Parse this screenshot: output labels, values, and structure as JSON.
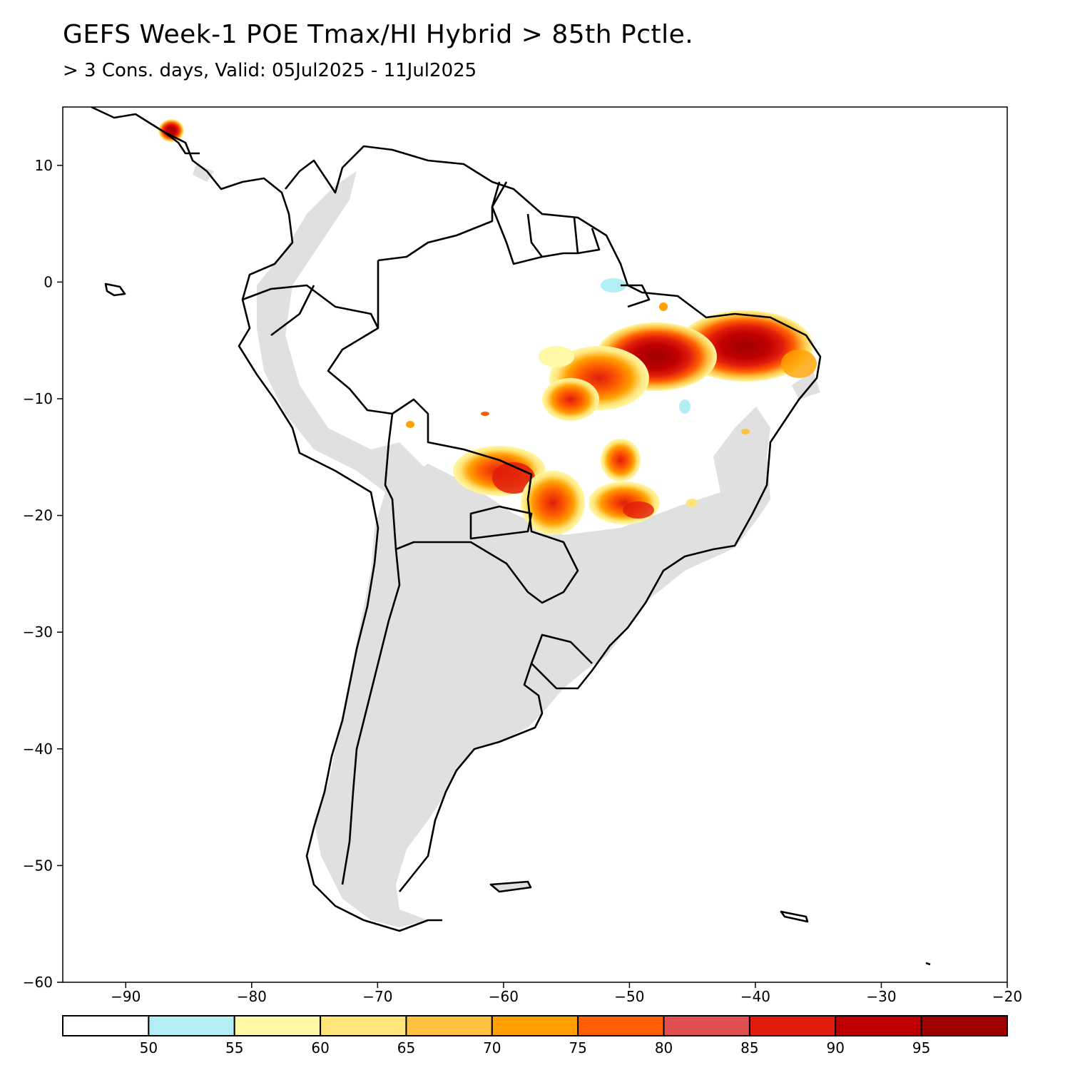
{
  "title": "GEFS Week-1 POE Tmax/HI Hybrid > 85th Pctle.",
  "subtitle": "> 3 Cons. days, Valid: 05Jul2025 - 11Jul2025",
  "map": {
    "region": "South America",
    "lon_range": [
      -95,
      -20
    ],
    "lat_range": [
      -60,
      15
    ],
    "lat_ticks": [
      10,
      0,
      -10,
      -20,
      -30,
      -40,
      -50,
      -60
    ],
    "lon_ticks": [
      -90,
      -80,
      -70,
      -60,
      -50,
      -40,
      -30,
      -20
    ],
    "lat_tick_labels": [
      "10",
      "0",
      "−10",
      "−20",
      "−30",
      "−40",
      "−50",
      "−60"
    ],
    "lon_tick_labels": [
      "−90",
      "−80",
      "−70",
      "−60",
      "−50",
      "−40",
      "−30",
      "−20"
    ],
    "land_color": "#e0e0e0",
    "no_data_color": "#ffffff"
  },
  "colorbar": {
    "colors": [
      "#ffffff",
      "#b3eef5",
      "#fff8a5",
      "#ffe57a",
      "#ffc13f",
      "#ffa000",
      "#ff5f00",
      "#e05050",
      "#e01c0c",
      "#c00000",
      "#a00000"
    ],
    "labels": [
      "50",
      "55",
      "60",
      "65",
      "70",
      "75",
      "80",
      "85",
      "90",
      "95"
    ]
  }
}
